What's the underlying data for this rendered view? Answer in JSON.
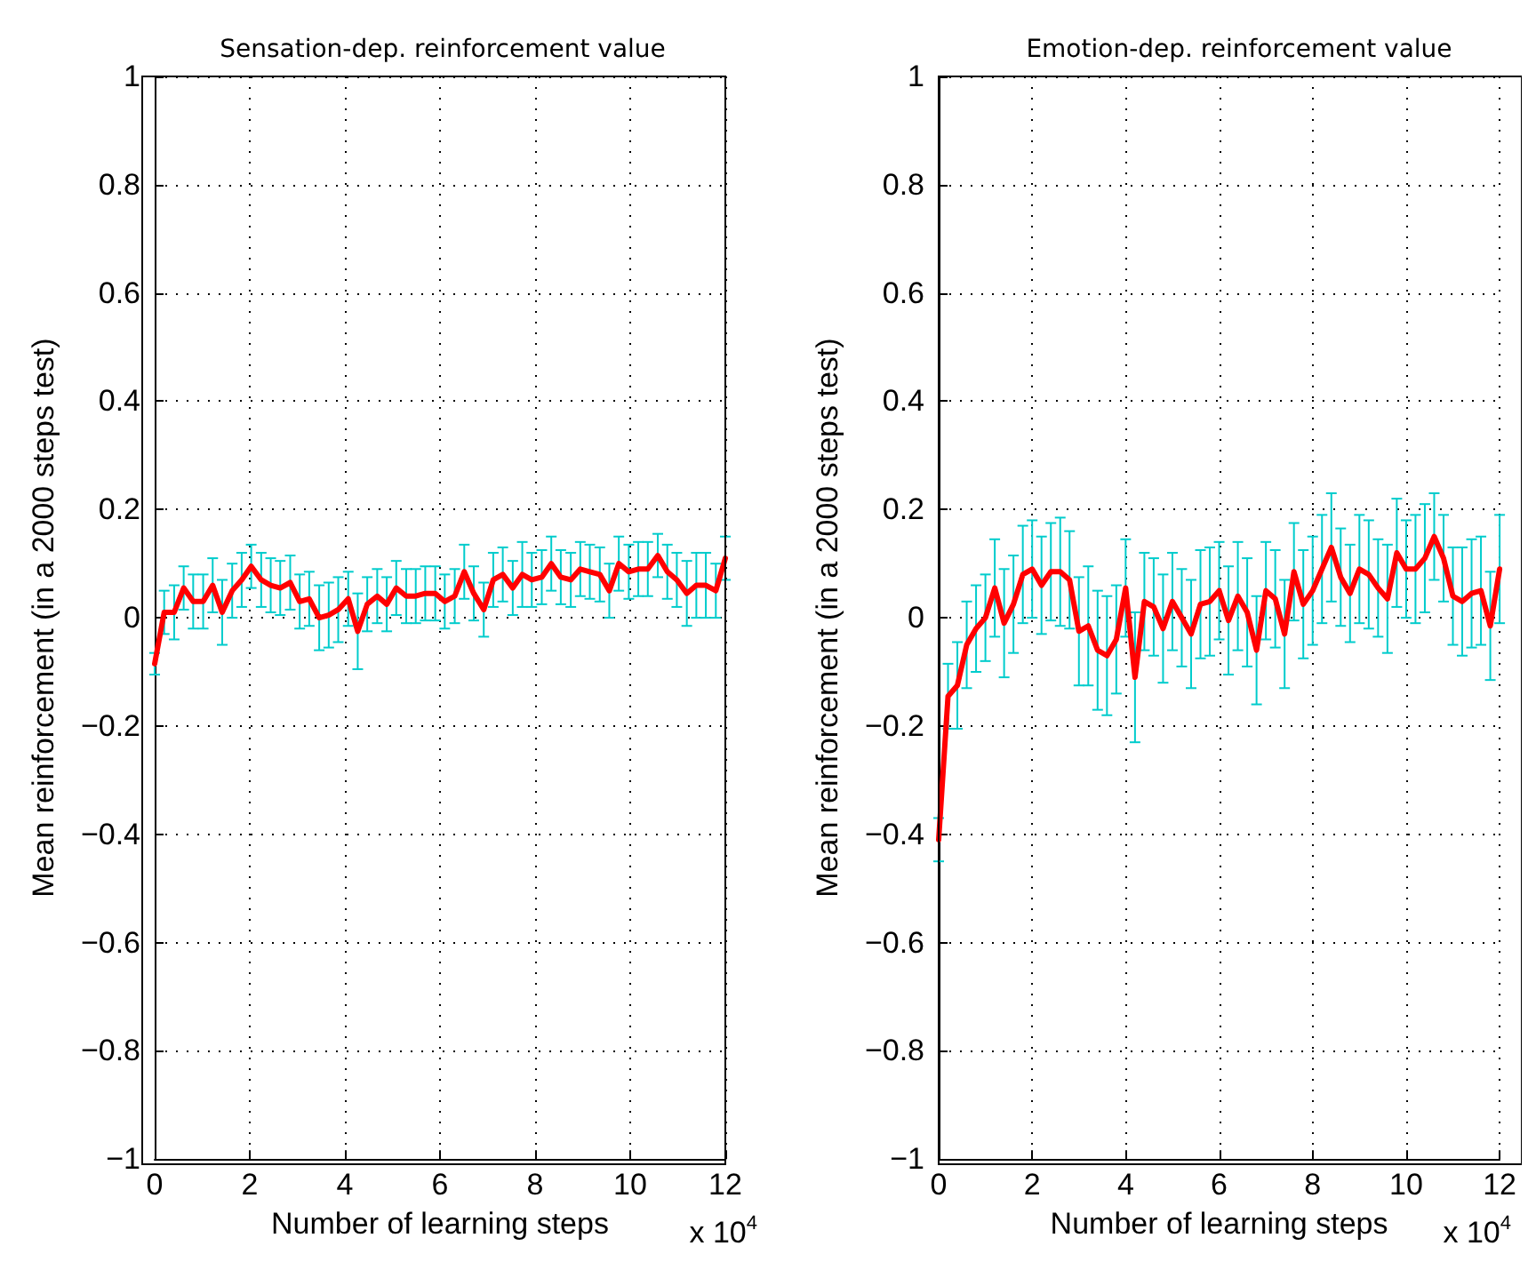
{
  "chart_data": [
    {
      "type": "line",
      "title": "Sensation-dep. reinforcement value",
      "xlabel": "Number of learning steps",
      "ylabel": "Mean reinforcement (in a 2000 steps test)",
      "annotations": [
        "x 10$^{4}$"
      ],
      "x": [
        0,
        0.2,
        0.41,
        0.61,
        0.81,
        1.02,
        1.22,
        1.42,
        1.63,
        1.83,
        2.03,
        2.24,
        2.44,
        2.64,
        2.85,
        3.05,
        3.25,
        3.46,
        3.66,
        3.86,
        4.07,
        4.27,
        4.47,
        4.68,
        4.88,
        5.08,
        5.29,
        5.49,
        5.69,
        5.9,
        6.1,
        6.31,
        6.51,
        6.71,
        6.92,
        7.12,
        7.32,
        7.53,
        7.73,
        7.93,
        8.14,
        8.34,
        8.54,
        8.75,
        8.95,
        9.15,
        9.36,
        9.56,
        9.76,
        9.97,
        10.17,
        10.37,
        10.58,
        10.78,
        10.98,
        11.19,
        11.39,
        11.59,
        11.8,
        12
      ],
      "series": [
        {
          "color": "#ff0000",
          "values": [
            -0.085,
            0.01,
            0.01,
            0.055,
            0.03,
            0.03,
            0.06,
            0.01,
            0.05,
            0.07,
            0.095,
            0.07,
            0.06,
            0.055,
            0.065,
            0.03,
            0.035,
            0.0,
            0.005,
            0.015,
            0.035,
            -0.025,
            0.025,
            0.04,
            0.025,
            0.055,
            0.04,
            0.04,
            0.045,
            0.045,
            0.03,
            0.04,
            0.085,
            0.045,
            0.015,
            0.07,
            0.08,
            0.055,
            0.08,
            0.07,
            0.075,
            0.1,
            0.075,
            0.07,
            0.09,
            0.085,
            0.08,
            0.05,
            0.1,
            0.085,
            0.09,
            0.09,
            0.115,
            0.085,
            0.07,
            0.045,
            0.06,
            0.06,
            0.05,
            0.11
          ],
          "errors": [
            0.02,
            0.04,
            0.05,
            0.04,
            0.05,
            0.05,
            0.05,
            0.06,
            0.05,
            0.05,
            0.04,
            0.05,
            0.05,
            0.05,
            0.05,
            0.05,
            0.05,
            0.06,
            0.06,
            0.06,
            0.05,
            0.07,
            0.05,
            0.05,
            0.05,
            0.05,
            0.05,
            0.05,
            0.05,
            0.05,
            0.05,
            0.05,
            0.05,
            0.05,
            0.05,
            0.05,
            0.05,
            0.05,
            0.06,
            0.05,
            0.05,
            0.05,
            0.05,
            0.05,
            0.05,
            0.05,
            0.05,
            0.05,
            0.05,
            0.05,
            0.05,
            0.05,
            0.04,
            0.05,
            0.05,
            0.06,
            0.06,
            0.06,
            0.05,
            0.04
          ]
        }
      ],
      "xlim": [
        0,
        12
      ],
      "xticks": [
        0,
        2,
        4,
        6,
        8,
        10,
        12
      ],
      "ylim": [
        -1,
        1
      ],
      "yticks": [
        {
          "value": -1,
          "label": "−1"
        },
        {
          "value": -0.8,
          "label": "−0.8"
        },
        {
          "value": -0.6,
          "label": "−0.6"
        },
        {
          "value": -0.4,
          "label": "−0.4"
        },
        {
          "value": -0.2,
          "label": "−0.2"
        },
        0,
        0.2,
        0.4,
        0.6,
        0.8,
        1
      ],
      "grid": true,
      "marker": "none",
      "line_style": "solid"
    },
    {
      "type": "line",
      "title": "Emotion-dep. reinforcement value",
      "xlabel": "Number of learning steps",
      "ylabel": "Mean reinforcement (in a 2000 steps test)",
      "annotations": [
        "x 10$^{4}$"
      ],
      "x": [
        0,
        0.2,
        0.4,
        0.6,
        0.8,
        1,
        1.2,
        1.4,
        1.6,
        1.8,
        2,
        2.2,
        2.4,
        2.6,
        2.8,
        3,
        3.2,
        3.4,
        3.6,
        3.8,
        4,
        4.2,
        4.4,
        4.6,
        4.8,
        5,
        5.2,
        5.4,
        5.6,
        5.8,
        6,
        6.2,
        6.4,
        6.6,
        6.8,
        7,
        7.2,
        7.4,
        7.6,
        7.8,
        8,
        8.2,
        8.4,
        8.6,
        8.8,
        9,
        9.2,
        9.4,
        9.6,
        9.8,
        10,
        10.2,
        10.4,
        10.6,
        10.8,
        11,
        11.2,
        11.4,
        11.6,
        11.8,
        12
      ],
      "series": [
        {
          "color": "#ff0000",
          "values": [
            -0.41,
            -0.145,
            -0.125,
            -0.05,
            -0.02,
            0.0,
            0.055,
            -0.01,
            0.025,
            0.08,
            0.09,
            0.06,
            0.085,
            0.085,
            0.07,
            -0.025,
            -0.015,
            -0.06,
            -0.07,
            -0.04,
            0.055,
            -0.11,
            0.03,
            0.02,
            -0.02,
            0.03,
            0.0,
            -0.03,
            0.025,
            0.03,
            0.05,
            -0.005,
            0.04,
            0.01,
            -0.06,
            0.05,
            0.035,
            -0.03,
            0.085,
            0.025,
            0.05,
            0.09,
            0.13,
            0.075,
            0.045,
            0.09,
            0.08,
            0.055,
            0.035,
            0.12,
            0.09,
            0.09,
            0.11,
            0.15,
            0.11,
            0.04,
            0.03,
            0.045,
            0.05,
            -0.015,
            0.09
          ],
          "errors": [
            0.04,
            0.06,
            0.08,
            0.08,
            0.08,
            0.08,
            0.09,
            0.1,
            0.09,
            0.09,
            0.09,
            0.09,
            0.09,
            0.1,
            0.09,
            0.1,
            0.11,
            0.11,
            0.11,
            0.1,
            0.09,
            0.12,
            0.09,
            0.09,
            0.1,
            0.09,
            0.09,
            0.1,
            0.1,
            0.1,
            0.09,
            0.1,
            0.1,
            0.1,
            0.1,
            0.09,
            0.09,
            0.1,
            0.09,
            0.1,
            0.1,
            0.1,
            0.1,
            0.09,
            0.09,
            0.1,
            0.1,
            0.09,
            0.1,
            0.1,
            0.09,
            0.1,
            0.1,
            0.08,
            0.08,
            0.09,
            0.1,
            0.1,
            0.1,
            0.1,
            0.1
          ]
        }
      ],
      "xlim": [
        0,
        12
      ],
      "xticks": [
        0,
        2,
        4,
        6,
        8,
        10,
        12
      ],
      "ylim": [
        -1,
        1
      ],
      "yticks": [
        {
          "value": -1,
          "label": "−1"
        },
        {
          "value": -0.8,
          "label": "−0.8"
        },
        {
          "value": -0.6,
          "label": "−0.6"
        },
        {
          "value": -0.4,
          "label": "−0.4"
        },
        {
          "value": -0.2,
          "label": "−0.2"
        },
        0,
        0.2,
        0.4,
        0.6,
        0.8,
        1
      ],
      "grid": true,
      "marker": "none",
      "line_style": "solid"
    }
  ]
}
